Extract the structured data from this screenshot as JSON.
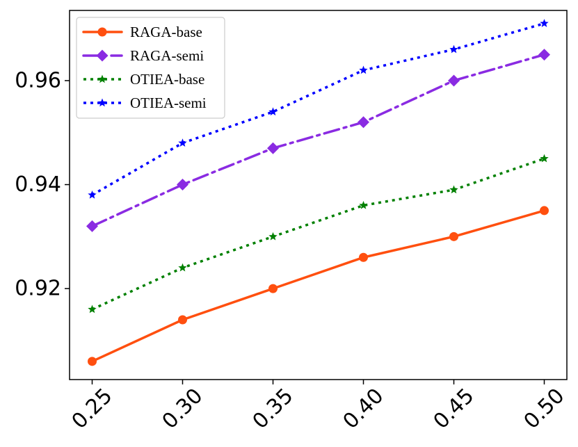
{
  "chart_data": {
    "type": "line",
    "title": "",
    "xlabel": "",
    "ylabel": "",
    "x": [
      0.25,
      0.3,
      0.35,
      0.4,
      0.45,
      0.5
    ],
    "x_tick_labels": [
      "0.25",
      "0.30",
      "0.35",
      "0.40",
      "0.45",
      "0.50"
    ],
    "y_ticks": [
      0.92,
      0.94,
      0.96
    ],
    "y_tick_labels": [
      "0.92",
      "0.94",
      "0.96"
    ],
    "xlim": [
      0.2375,
      0.5125
    ],
    "ylim": [
      0.9025,
      0.9735
    ],
    "grid": false,
    "legend_position": "top-left",
    "series": [
      {
        "name": "RAGA-base",
        "color": "#FF4F0F",
        "line": "solid",
        "marker": "circle",
        "values": [
          0.906,
          0.914,
          0.92,
          0.926,
          0.93,
          0.935
        ]
      },
      {
        "name": "RAGA-semi",
        "color": "#8A2BE2",
        "line": "dashdot",
        "marker": "diamond",
        "values": [
          0.932,
          0.94,
          0.947,
          0.952,
          0.96,
          0.965
        ]
      },
      {
        "name": "OTIEA-base",
        "color": "#008000",
        "line": "dotted",
        "marker": "star",
        "values": [
          0.916,
          0.924,
          0.93,
          0.936,
          0.939,
          0.945
        ]
      },
      {
        "name": "OTIEA-semi",
        "color": "#0000FF",
        "line": "dotted",
        "marker": "star",
        "values": [
          0.938,
          0.948,
          0.954,
          0.962,
          0.966,
          0.971
        ]
      }
    ]
  }
}
